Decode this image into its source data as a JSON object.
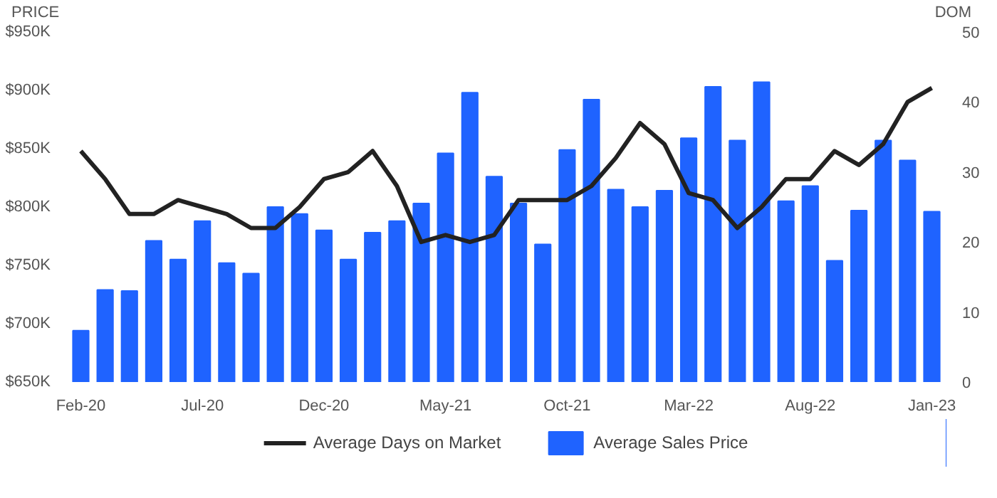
{
  "chart_data": {
    "type": "bar",
    "categories": [
      "Feb-20",
      null,
      null,
      null,
      null,
      "Jul-20",
      null,
      null,
      null,
      null,
      "Dec-20",
      null,
      null,
      null,
      null,
      "May-21",
      null,
      null,
      null,
      null,
      "Oct-21",
      null,
      null,
      null,
      null,
      "Mar-22",
      null,
      null,
      null,
      null,
      "Aug-22",
      null,
      null,
      null,
      null,
      "Jan-23"
    ],
    "ylabel": "PRICE",
    "y2label": "DOM",
    "ylim": [
      650000,
      950000
    ],
    "yticks": [
      {
        "value": 650000,
        "label": "$650K"
      },
      {
        "value": 700000,
        "label": "$700K"
      },
      {
        "value": 750000,
        "label": "$750K"
      },
      {
        "value": 800000,
        "label": "$800K"
      },
      {
        "value": 850000,
        "label": "$850K"
      },
      {
        "value": 900000,
        "label": "$900K"
      },
      {
        "value": 950000,
        "label": "$950K"
      }
    ],
    "y2lim": [
      0,
      50
    ],
    "y2ticks": [
      0,
      10,
      20,
      30,
      40,
      50
    ],
    "grid": false,
    "legend": "bottom",
    "series": [
      {
        "name": "Average Days on Market",
        "type": "line",
        "axis": "y2",
        "color": "#222222",
        "values": [
          33,
          29,
          24,
          24,
          26,
          25,
          24,
          22,
          22,
          25,
          29,
          30,
          33,
          28,
          20,
          21,
          20,
          21,
          26,
          26,
          26,
          28,
          32,
          37,
          34,
          27,
          26,
          22,
          25,
          29,
          29,
          33,
          31,
          34,
          40,
          42
        ]
      },
      {
        "name": "Average Sales Price",
        "type": "bar",
        "color": "#1f63ff",
        "values": [
          694000,
          729000,
          728000,
          771000,
          755000,
          788000,
          752000,
          743000,
          800000,
          794000,
          780000,
          755000,
          778000,
          788000,
          803000,
          846000,
          898000,
          826000,
          803000,
          768000,
          849000,
          892000,
          815000,
          800000,
          814000,
          859000,
          903000,
          857000,
          907000,
          805000,
          818000,
          754000,
          797000,
          857000,
          840000,
          796000
        ]
      }
    ]
  }
}
